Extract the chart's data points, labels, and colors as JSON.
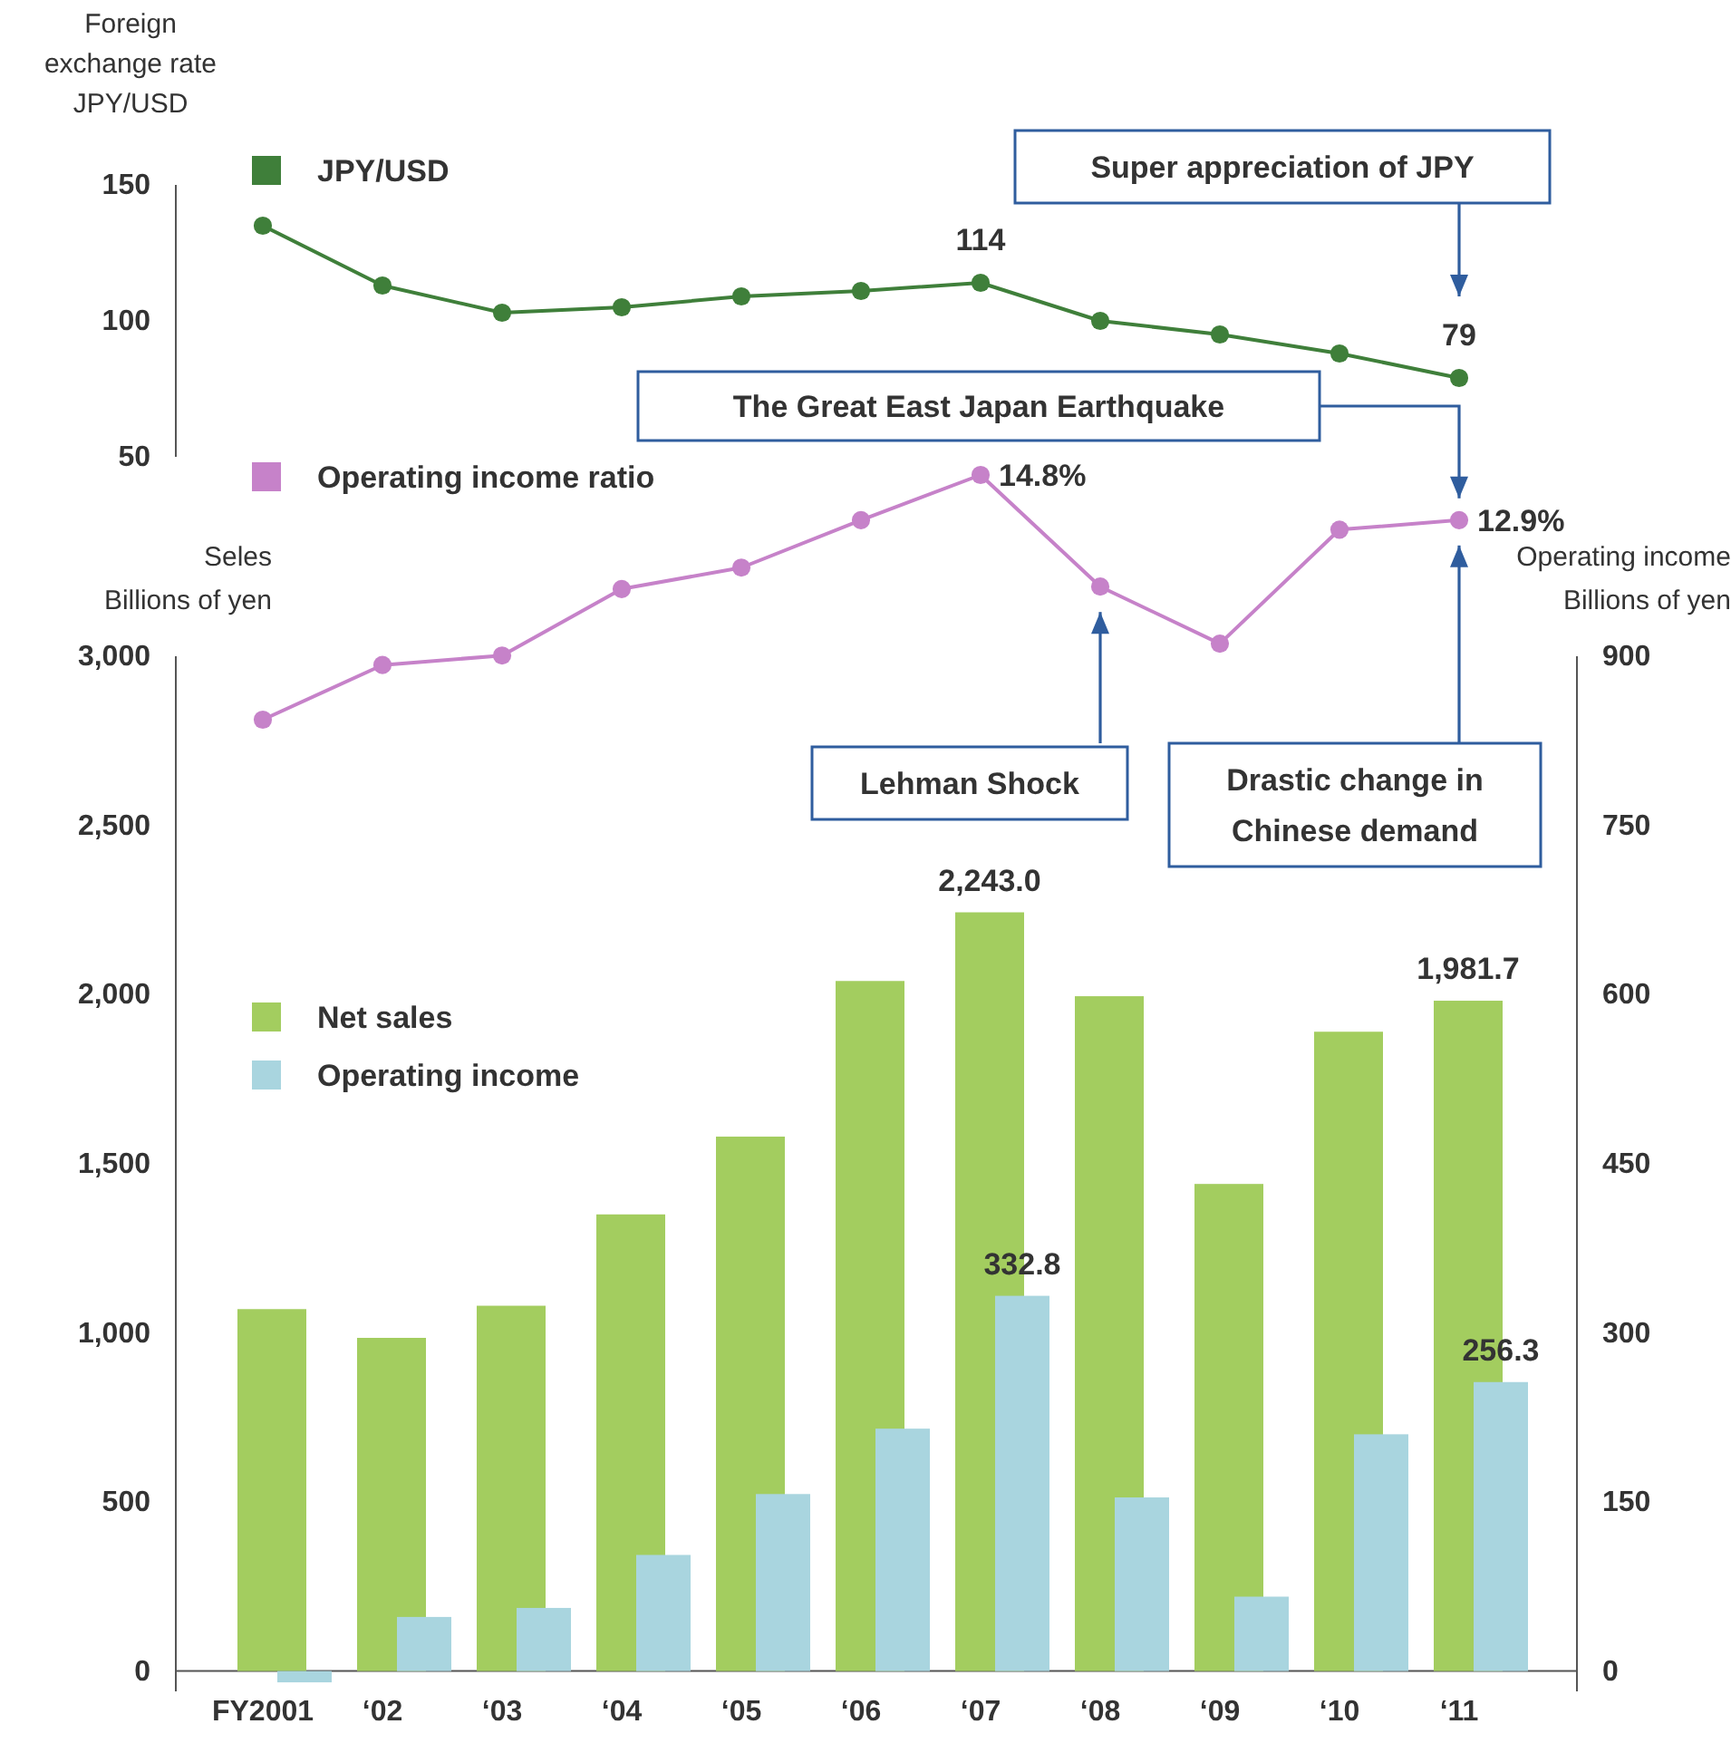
{
  "chart_data": [
    {
      "type": "line",
      "ylabel": "Foreign\nexchange rate\nJPY/USD",
      "categories": [
        null,
        null,
        null,
        null,
        null,
        null,
        null,
        null,
        null,
        null,
        null
      ],
      "series": [
        {
          "name": "JPY/USD",
          "color": "#3f7f3a",
          "values": [
            135,
            113,
            103,
            105,
            109,
            111,
            114,
            100,
            95,
            88,
            79
          ],
          "value_labels": [
            null,
            null,
            null,
            null,
            null,
            null,
            "114",
            null,
            null,
            null,
            "79"
          ]
        }
      ],
      "ylim": [
        50,
        150
      ],
      "yticks": [
        50,
        100,
        150
      ],
      "tick_labels": "y",
      "legend": "top left",
      "marker": "circle",
      "annotations": [
        "Super appreciation of JPY"
      ]
    },
    {
      "type": "line",
      "categories": [
        null,
        null,
        null,
        null,
        null,
        null,
        null,
        null,
        null,
        null,
        null
      ],
      "series": [
        {
          "name": "Operating income ratio",
          "color": "#c682c9",
          "values": [
            4.5,
            6.8,
            7.2,
            10.0,
            10.9,
            12.9,
            14.8,
            10.1,
            7.7,
            12.5,
            12.9
          ],
          "value_labels": [
            null,
            null,
            null,
            null,
            null,
            null,
            "14.8%",
            null,
            null,
            null,
            "12.9%"
          ]
        }
      ],
      "tick_labels": false,
      "legend": "top left",
      "marker": "circle",
      "annotations": [
        "The Great East Japan Earthquake",
        "Lehman Shock",
        "Drastic change in Chinese demand"
      ]
    },
    {
      "type": "bar",
      "ylabel": "Seles\nBillions of yen",
      "y2label": "Operating income\nBillions of yen",
      "categories": [
        "FY2001",
        "‘02",
        "‘03",
        "‘04",
        "‘05",
        "‘06",
        "‘07",
        "‘08",
        "‘09",
        "‘10",
        "‘11"
      ],
      "series": [
        {
          "name": "Net sales",
          "color": "#a3cd5f",
          "values": [
            1070,
            985,
            1080,
            1350,
            1580,
            2040,
            2243.0,
            1995,
            1440,
            1890,
            1981.7
          ],
          "value_labels": [
            null,
            null,
            null,
            null,
            null,
            null,
            "2,243.0",
            null,
            null,
            null,
            "1,981.7"
          ]
        },
        {
          "name": "Operating income",
          "color": "#a9d5df",
          "axis": "y2",
          "values": [
            -10,
            48,
            56,
            103,
            157,
            215,
            332.8,
            154,
            66,
            210,
            256.3
          ],
          "value_labels": [
            null,
            null,
            null,
            null,
            null,
            null,
            "332.8",
            null,
            null,
            null,
            "256.3"
          ]
        }
      ],
      "ylim": [
        -60,
        3000
      ],
      "yticks": [
        0,
        {
          "value": 500,
          "label": "500"
        },
        {
          "value": 1000,
          "label": "1,000"
        },
        {
          "value": 1500,
          "label": "1,500"
        },
        {
          "value": 2000,
          "label": "2,000"
        },
        {
          "value": 2500,
          "label": "2,500"
        },
        {
          "value": 3000,
          "label": "3,000"
        }
      ],
      "y2lim": [
        -18,
        900
      ],
      "y2ticks": [
        0,
        150,
        300,
        450,
        600,
        750,
        900
      ],
      "legend": "top left"
    }
  ]
}
